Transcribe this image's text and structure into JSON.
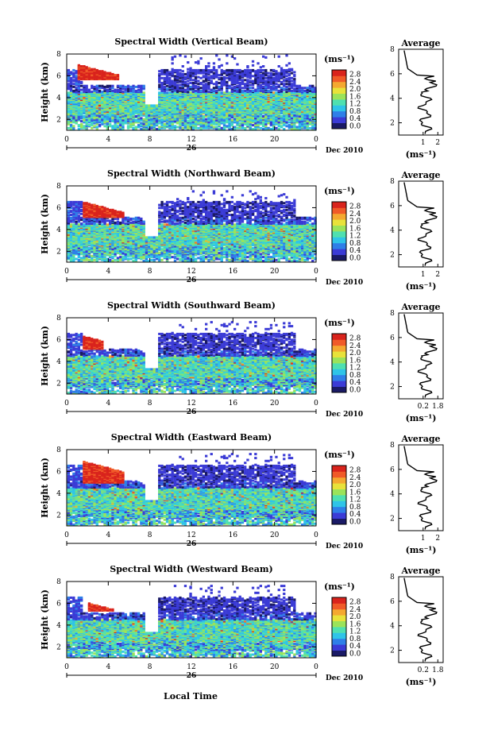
{
  "chart_data": {
    "type": "heatmap",
    "colorbar": {
      "unit_label": "(ms⁻¹)",
      "ticks": [
        "0.0",
        "0.4",
        "0.8",
        "1.2",
        "1.6",
        "2.0",
        "2.4",
        "2.8"
      ],
      "colors": [
        "#1a1a66",
        "#3b3bd6",
        "#2f7fe8",
        "#2fc4e8",
        "#4fe0b0",
        "#9be35a",
        "#e8e23a",
        "#f4a830",
        "#f05a28",
        "#d9231c"
      ],
      "range": [
        0,
        3.0
      ]
    },
    "x_axis": {
      "label": "Local Time",
      "ticks": [
        "0",
        "4",
        "8",
        "12",
        "16",
        "20",
        "0"
      ],
      "range": [
        0,
        24
      ],
      "date_label": "26",
      "month_label": "Dec 2010"
    },
    "y_axis": {
      "label": "Height (km)",
      "ticks": [
        "2",
        "4",
        "6",
        "8"
      ],
      "range": [
        1,
        8
      ]
    },
    "average_panel": {
      "title": "Average",
      "xlabel": "(ms⁻¹)",
      "y_ticks": [
        "2",
        "4",
        "6",
        "8"
      ]
    },
    "panels": [
      {
        "title": "Spectral Width (Vertical Beam)",
        "avg_x_ticks": [
          "1",
          "2"
        ],
        "top_km": 7.8,
        "red_patch": [
          1.0,
          5.0,
          5.5,
          6.9
        ]
      },
      {
        "title": "Spectral Width (Northward Beam)",
        "avg_x_ticks": [
          "1",
          "2"
        ],
        "top_km": 7.5,
        "red_patch": [
          1.5,
          5.5,
          5.0,
          6.4
        ]
      },
      {
        "title": "Spectral Width (Southward Beam)",
        "avg_x_ticks": [
          "0.2",
          "1.8"
        ],
        "top_km": 7.5,
        "red_patch": [
          1.5,
          3.5,
          5.0,
          6.2
        ]
      },
      {
        "title": "Spectral Width (Eastward Beam)",
        "avg_x_ticks": [
          "1",
          "2"
        ],
        "top_km": 7.5,
        "red_patch": [
          1.5,
          5.5,
          4.8,
          6.8
        ]
      },
      {
        "title": "Spectral Width (Westward Beam)",
        "avg_x_ticks": [
          "0.2",
          "1.8"
        ],
        "top_km": 7.5,
        "red_patch": [
          2.0,
          4.5,
          5.2,
          5.9
        ]
      }
    ]
  }
}
